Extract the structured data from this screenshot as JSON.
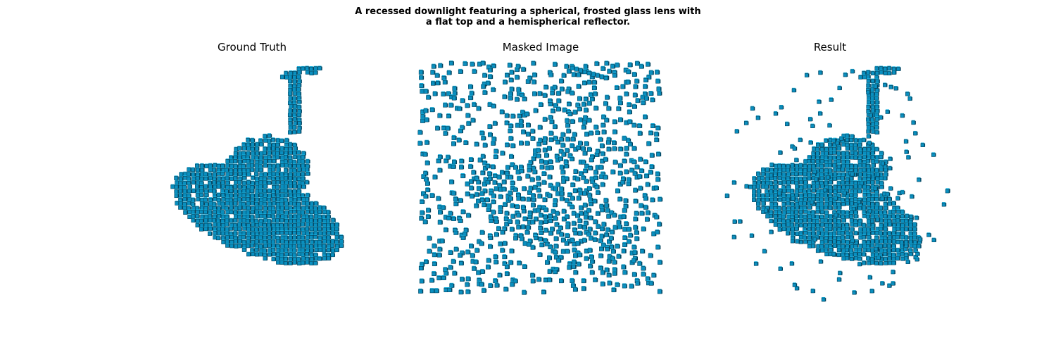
{
  "figure": {
    "title_line1": "A recessed downlight featuring a spherical, frosted glass lens with",
    "title_line2": "a flat top and a hemispherical reflector."
  },
  "panels": [
    {
      "title": "Ground Truth",
      "kind": "object"
    },
    {
      "title": "Masked Image",
      "kind": "masked"
    },
    {
      "title": "Result",
      "kind": "result"
    }
  ],
  "colors": {
    "voxel_face": "#0a8fbf",
    "voxel_top": "#19b3e0",
    "voxel_shadow": "#05435d",
    "background": "#ffffff"
  }
}
